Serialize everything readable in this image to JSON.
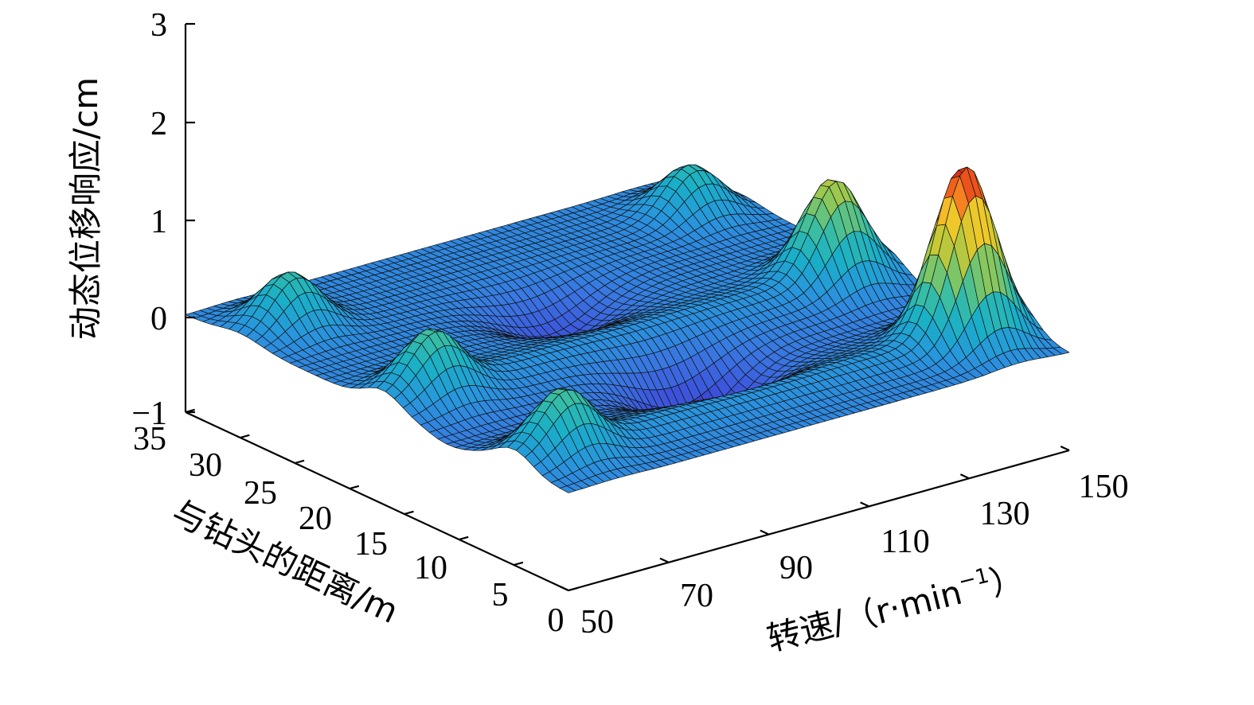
{
  "chart_data": {
    "type": "surface3d",
    "zlabel": "动态位移响应/cm",
    "ylabel": "与钻头的距离/m",
    "xlabel": "转速/（r·min",
    "xlabel_sup": "−1",
    "xlabel_tail": "）",
    "x_ticks": [
      "50",
      "70",
      "90",
      "110",
      "130",
      "150"
    ],
    "y_ticks": [
      "0",
      "5",
      "10",
      "15",
      "20",
      "25",
      "30",
      "35"
    ],
    "z_ticks": [
      "3",
      "2",
      "1",
      "0",
      "−1"
    ],
    "x_range": [
      50,
      150
    ],
    "y_range": [
      0,
      35
    ],
    "z_range": [
      -1,
      3
    ],
    "colormap": "parula",
    "peaks": [
      {
        "rpm": 140,
        "distance": 5,
        "amplitude": 1.7
      },
      {
        "rpm": 140,
        "distance": 17,
        "amplitude": 0.95
      },
      {
        "rpm": 140,
        "distance": 30,
        "amplitude": 0.5
      },
      {
        "rpm": 60,
        "distance": 5,
        "amplitude": 0.55
      },
      {
        "rpm": 60,
        "distance": 17,
        "amplitude": 0.55
      },
      {
        "rpm": 60,
        "distance": 30,
        "amplitude": 0.55
      }
    ],
    "troughs": [
      {
        "rpm": 100,
        "distance": 11,
        "amplitude": -0.6
      },
      {
        "rpm": 100,
        "distance": 24,
        "amplitude": -0.4
      }
    ]
  }
}
